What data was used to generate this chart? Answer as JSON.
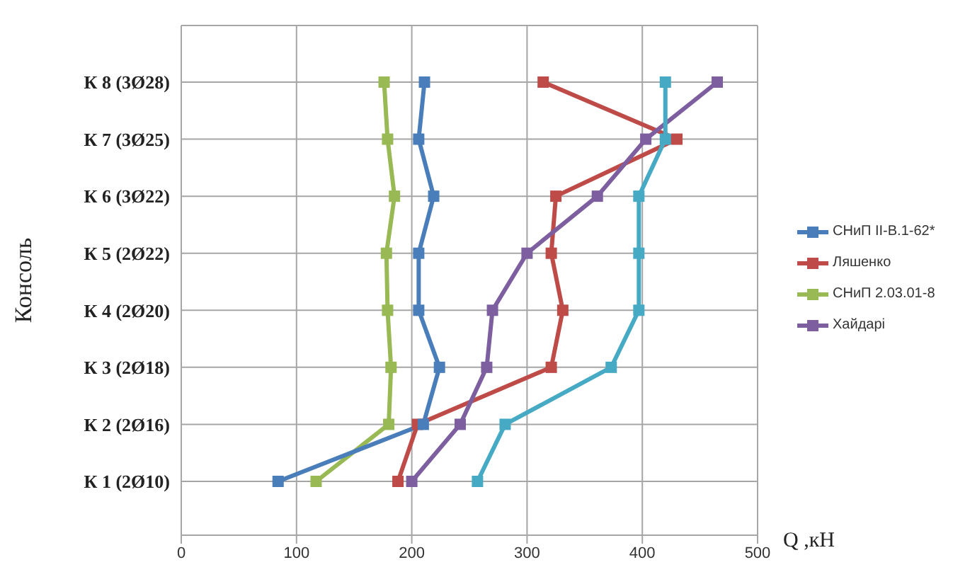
{
  "chart_data": {
    "type": "line",
    "orientation": "horizontal",
    "ylabel": "Консоль",
    "xlabel": "Q ,кН",
    "categories": [
      "К 8 (3Ø28)",
      "К 7 (3Ø25)",
      "К 6 (3Ø22)",
      "К 5 (2Ø22)",
      "К 4 (2Ø20)",
      "К 3 (2Ø18)",
      "К 2 (2Ø16)",
      "К 1 (2Ø10)"
    ],
    "series": [
      {
        "name": "СНиП II-В.1-62*",
        "color": "#4a7ebb",
        "values": [
          211,
          206,
          219,
          206,
          206,
          224,
          210,
          84
        ]
      },
      {
        "name": "Ляшенко",
        "color": "#be4b48",
        "values": [
          314,
          430,
          325,
          321,
          331,
          321,
          205,
          188
        ]
      },
      {
        "name": "СНиП 2.03.01-8",
        "color": "#98b954",
        "values": [
          176,
          179,
          185,
          178,
          179,
          182,
          180,
          117
        ]
      },
      {
        "name": "Хайдарі",
        "color": "#7d5fa0",
        "values": [
          465,
          403,
          361,
          300,
          270,
          265,
          242,
          200
        ]
      },
      {
        "color": "#46aac5",
        "values": [
          420,
          420,
          397,
          397,
          397,
          373,
          281,
          257
        ]
      }
    ],
    "xlim": [
      0,
      500
    ],
    "xticks": [
      0,
      100,
      200,
      300,
      400,
      500
    ],
    "grid": true,
    "legend": "right",
    "marker": "square",
    "line_style": "solid"
  }
}
